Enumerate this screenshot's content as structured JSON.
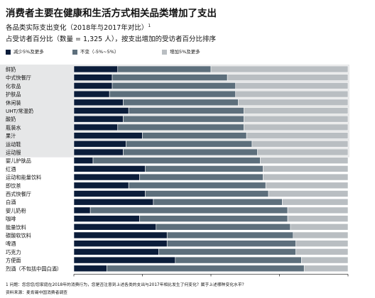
{
  "page": {
    "title": "消费者主要在健康和生活方式相关品类增加了支出",
    "subtitle": "各品类实际支出变化（2018年与2017年对比）",
    "subtitle_sup": "1",
    "subtitle2": "占受访者百分比（数量 = 1,325 人），按支出增加的受访者百分比排序",
    "footnote": "1 问题：您您您/您家庭在2018年的消费行为，您是否注意到上述各类的支出与2017年相比发生了何变化？属于上述哪种变化水平？",
    "source": "资料来源：麦肯锡中国消费者调查"
  },
  "colors": {
    "decrease": "#0b1d3a",
    "same": "#5d6f7c",
    "increase": "#b9bec2",
    "highlight": "#e6e7e8",
    "divider": "#ffffff"
  },
  "chart_data": {
    "type": "bar",
    "orientation": "horizontal",
    "stacked": true,
    "categories": [
      "鲜奶",
      "中式快餐厅",
      "化妆品",
      "护肤品",
      "休闲装",
      "UHT/常温奶",
      "酸奶",
      "瓶装水",
      "果汁",
      "运动鞋",
      "运动服",
      "婴儿护肤品",
      "红酒",
      "运动和能量饮料",
      "即饮茶",
      "西式快餐厅",
      "白酒",
      "婴儿奶粉",
      "咖啡",
      "能量饮料",
      "碳酸软饮料",
      "啤酒",
      "巧克力",
      "方便面",
      "烈酒（不包括中国白酒）"
    ],
    "highlighted_categories": [
      "鲜奶",
      "中式快餐厅",
      "化妆品",
      "护肤品",
      "休闲装",
      "UHT/常温奶",
      "酸奶",
      "瓶装水",
      "果汁",
      "运动鞋",
      "运动服"
    ],
    "series": [
      {
        "name": "减少5%及更多",
        "values": [
          16,
          14,
          14,
          13,
          18,
          20,
          18,
          16,
          25,
          19,
          18,
          7,
          26,
          24,
          20,
          26,
          29,
          6,
          24,
          30,
          34,
          34,
          31,
          37,
          12
        ]
      },
      {
        "name": "不变（-5%~5%）",
        "values": [
          34,
          42,
          45,
          46,
          42,
          42,
          44,
          46,
          38,
          46,
          49,
          61,
          43,
          45,
          50,
          45,
          47,
          72,
          54,
          49,
          46,
          47,
          50,
          46,
          72
        ]
      },
      {
        "name": "增加5%及更多",
        "values": [
          50,
          44,
          41,
          41,
          40,
          38,
          38,
          38,
          37,
          35,
          33,
          32,
          31,
          31,
          30,
          29,
          24,
          22,
          22,
          21,
          20,
          19,
          19,
          17,
          16
        ]
      }
    ],
    "xlim": [
      0,
      100
    ],
    "x_ticks": [
      "0%",
      "25%",
      "50%",
      "75%",
      "100%"
    ],
    "grid": false,
    "legend_position": "top-left"
  }
}
